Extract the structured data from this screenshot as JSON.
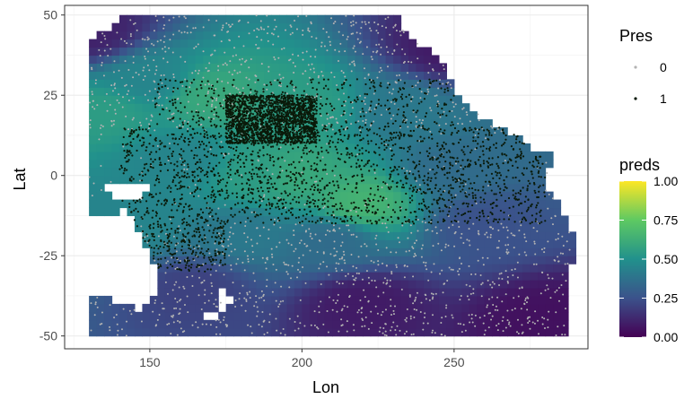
{
  "chart_data": {
    "type": "heatmap",
    "xlabel": "Lon",
    "ylabel": "Lat",
    "xlim": [
      122,
      294
    ],
    "ylim": [
      -54,
      53
    ],
    "x_ticks": [
      150,
      200,
      250
    ],
    "y_ticks": [
      50,
      25,
      0,
      -25,
      -50
    ],
    "x_tick_labels": [
      "150",
      "200",
      "250"
    ],
    "y_tick_labels": [
      "50",
      "25",
      "0",
      "-25",
      "-50"
    ],
    "grid": true,
    "panel_background": "#ffffff",
    "grid_color": "#ebebeb",
    "legend_position": "right",
    "fill_variable": {
      "name": "preds",
      "range": [
        0,
        1
      ],
      "ticks": [
        0,
        0.25,
        0.5,
        0.75,
        1
      ],
      "tick_labels": [
        "0.00",
        "0.25",
        "0.50",
        "0.75",
        "1.00"
      ],
      "palette": [
        "#440154",
        "#3b528b",
        "#21918c",
        "#5ec962",
        "#fde725"
      ]
    },
    "point_variable": {
      "name": "Pres",
      "levels": [
        "0",
        "1"
      ],
      "colors": [
        "#b3b3b3",
        "#0a1a0a"
      ]
    },
    "prediction_field": [
      {
        "lon": 130,
        "lat": 45,
        "preds": 0.1
      },
      {
        "lon": 150,
        "lat": 30,
        "preds": 0.45
      },
      {
        "lon": 135,
        "lat": 20,
        "preds": 0.55
      },
      {
        "lon": 170,
        "lat": 25,
        "preds": 0.6
      },
      {
        "lon": 200,
        "lat": 22,
        "preds": 0.55
      },
      {
        "lon": 235,
        "lat": 20,
        "preds": 0.4
      },
      {
        "lon": 160,
        "lat": 5,
        "preds": 0.45
      },
      {
        "lon": 185,
        "lat": 0,
        "preds": 0.55
      },
      {
        "lon": 198,
        "lat": 0,
        "preds": 0.6
      },
      {
        "lon": 220,
        "lat": -9,
        "preds": 0.65
      },
      {
        "lon": 250,
        "lat": 2,
        "preds": 0.35
      },
      {
        "lon": 145,
        "lat": -15,
        "preds": 0.45
      },
      {
        "lon": 180,
        "lat": -18,
        "preds": 0.4
      },
      {
        "lon": 210,
        "lat": -20,
        "preds": 0.35
      },
      {
        "lon": 260,
        "lat": -15,
        "preds": 0.25
      },
      {
        "lon": 165,
        "lat": -35,
        "preds": 0.2
      },
      {
        "lon": 220,
        "lat": -40,
        "preds": 0.08
      },
      {
        "lon": 280,
        "lat": -45,
        "preds": 0.05
      },
      {
        "lon": 250,
        "lat": 40,
        "preds": 0.08
      }
    ],
    "presence_clusters": [
      {
        "lon_range": [
          140,
          280
        ],
        "lat_range": [
          -15,
          15
        ],
        "density": "high"
      },
      {
        "lon_range": [
          175,
          205
        ],
        "lat_range": [
          10,
          25
        ],
        "density": "high"
      },
      {
        "lon_range": [
          150,
          250
        ],
        "lat_range": [
          15,
          30
        ],
        "density": "medium"
      },
      {
        "lon_range": [
          135,
          175
        ],
        "lat_range": [
          -30,
          -15
        ],
        "density": "medium"
      }
    ]
  }
}
